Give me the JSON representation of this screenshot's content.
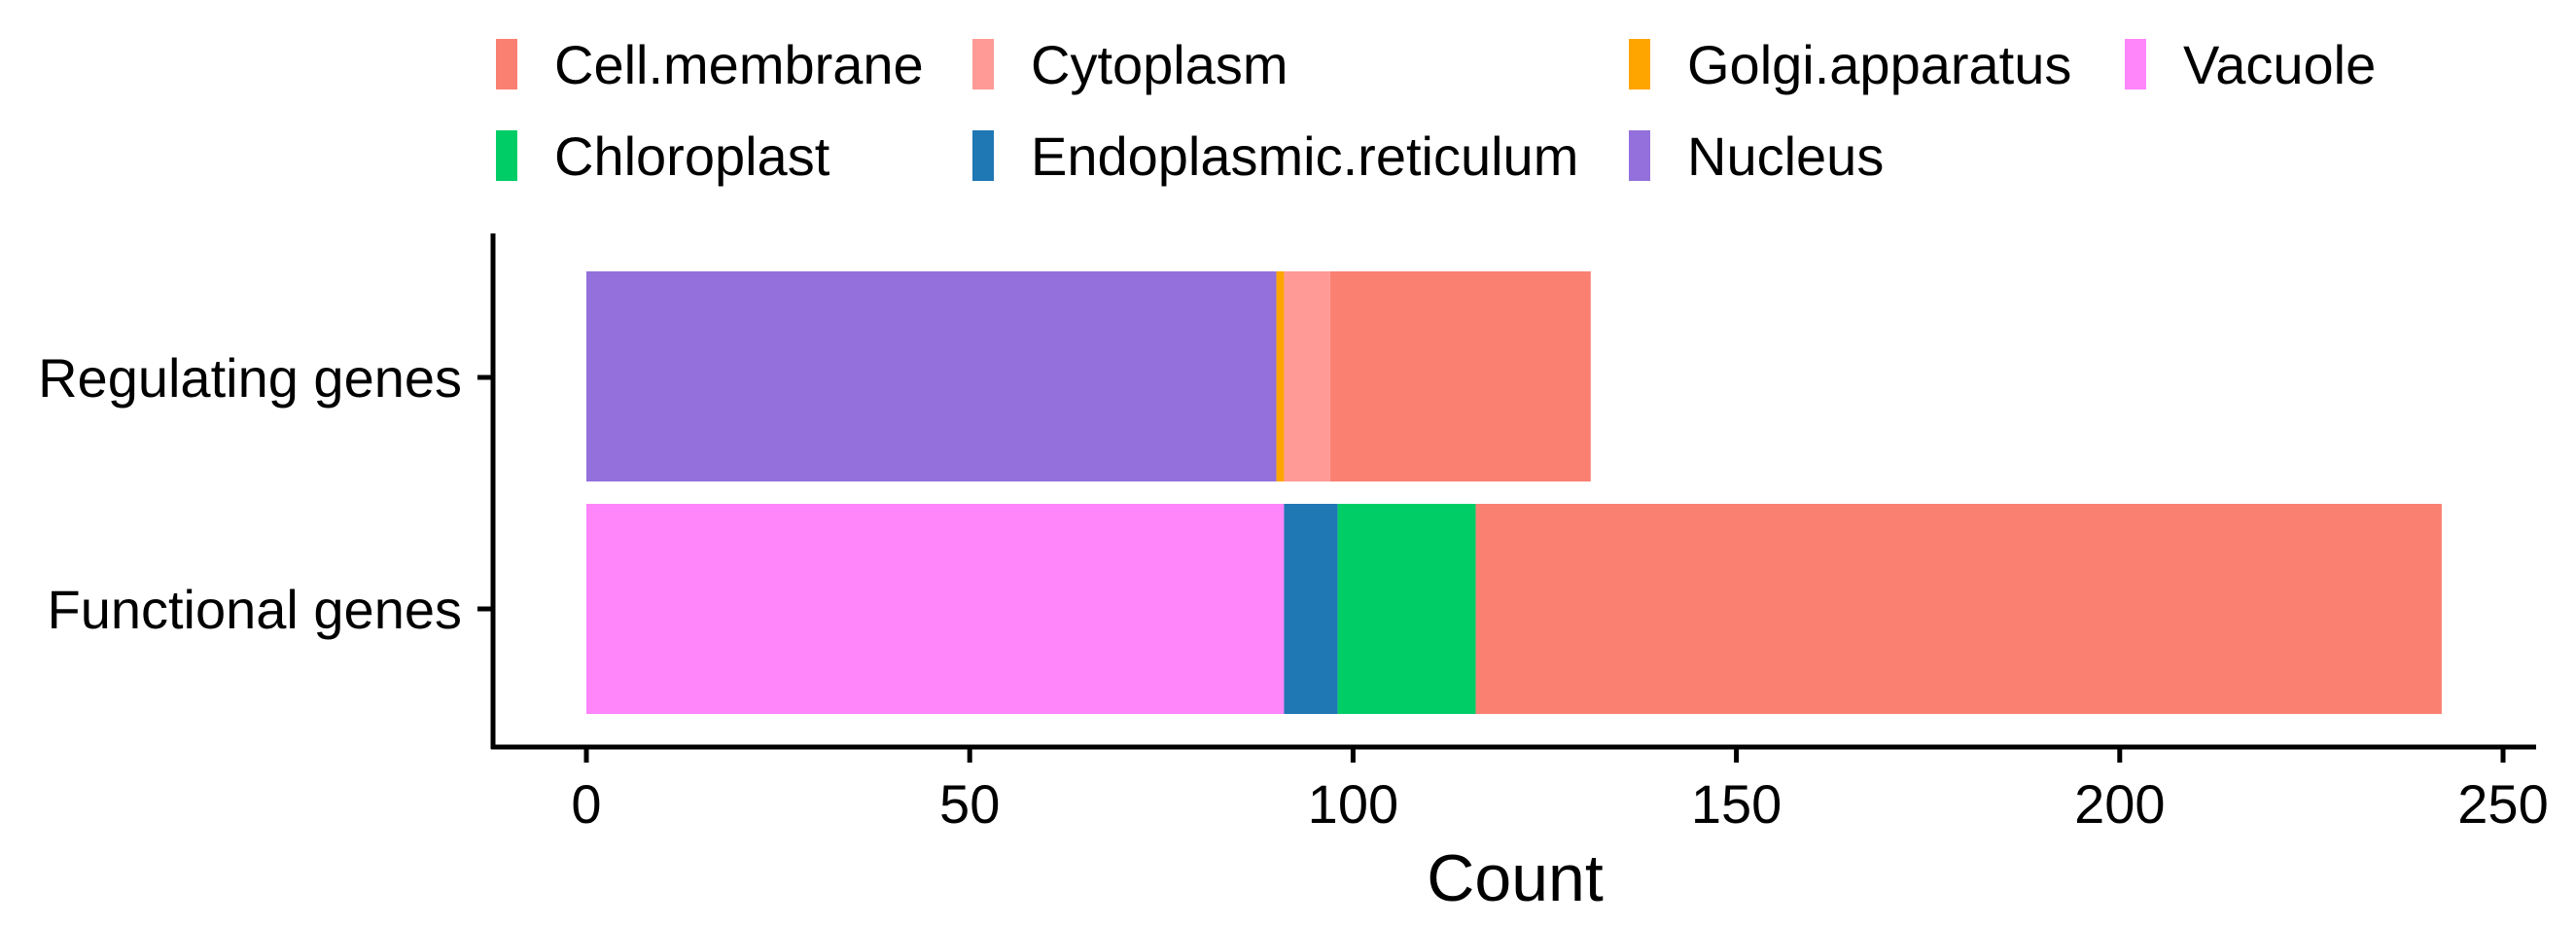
{
  "chart_data": {
    "type": "bar",
    "orientation": "horizontal",
    "stacked": true,
    "title": "",
    "xlabel": "Count",
    "ylabel": "",
    "xlim": [
      0,
      250
    ],
    "xticks": [
      0,
      50,
      100,
      150,
      200,
      250
    ],
    "categories": [
      "Regulating genes",
      "Functional genes"
    ],
    "segments": [
      {
        "category": "Regulating genes",
        "series": "Nucleus",
        "start": 0,
        "value": 90
      },
      {
        "category": "Regulating genes",
        "series": "Golgi.apparatus",
        "start": 90,
        "value": 1
      },
      {
        "category": "Regulating genes",
        "series": "Cytoplasm",
        "start": 91,
        "value": 6
      },
      {
        "category": "Regulating genes",
        "series": "Cell.membrane",
        "start": 97,
        "value": 34
      },
      {
        "category": "Functional genes",
        "series": "Vacuole",
        "start": 0,
        "value": 91
      },
      {
        "category": "Functional genes",
        "series": "Endoplasmic.reticulum",
        "start": 91,
        "value": 7
      },
      {
        "category": "Functional genes",
        "series": "Chloroplast",
        "start": 98,
        "value": 18
      },
      {
        "category": "Functional genes",
        "series": "Cell.membrane",
        "start": 116,
        "value": 126
      }
    ],
    "legend": {
      "position": "top",
      "entries": [
        {
          "name": "Cell.membrane",
          "color": "#FA8072"
        },
        {
          "name": "Cytoplasm",
          "color": "#FF9A96"
        },
        {
          "name": "Golgi.apparatus",
          "color": "#FFA500"
        },
        {
          "name": "Vacuole",
          "color": "#FF85FA"
        },
        {
          "name": "Chloroplast",
          "color": "#00CD66"
        },
        {
          "name": "Endoplasmic.reticulum",
          "color": "#1F77B4"
        },
        {
          "name": "Nucleus",
          "color": "#9370DB"
        }
      ]
    }
  }
}
